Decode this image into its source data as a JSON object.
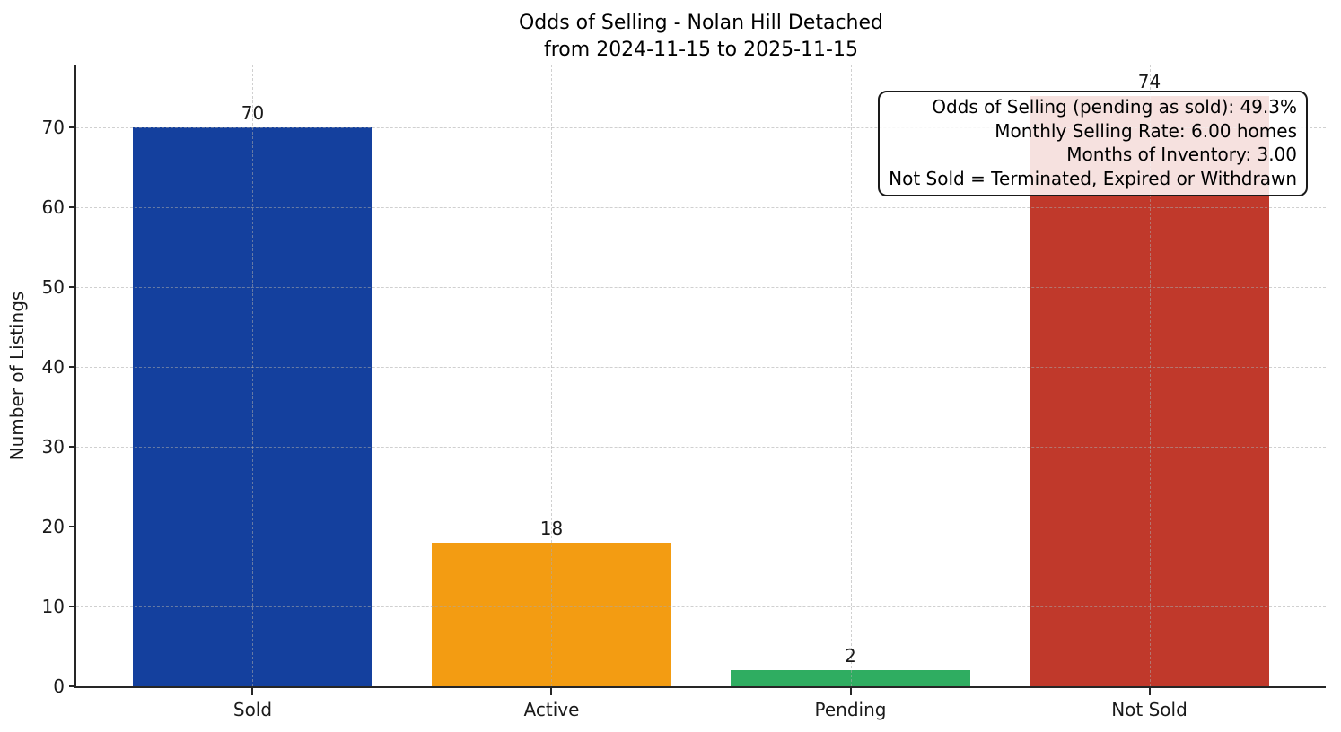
{
  "figure": {
    "title_line1": "Odds of Selling - Nolan Hill Detached",
    "title_line2": "from 2024-11-15 to 2025-11-15",
    "ylabel": "Number of Listings"
  },
  "chart_data": {
    "type": "bar",
    "title": "Odds of Selling - Nolan Hill Detached\nfrom 2024-11-15 to 2025-11-15",
    "xlabel": "",
    "ylabel": "Number of Listings",
    "categories": [
      "Sold",
      "Active",
      "Pending",
      "Not Sold"
    ],
    "values": [
      70,
      18,
      2,
      74
    ],
    "bar_value_labels": [
      "70",
      "18",
      "2",
      "74"
    ],
    "bar_colors": [
      "#14409e",
      "#f39c12",
      "#2fad61",
      "#c0392b"
    ],
    "ylim": [
      0,
      77.9
    ],
    "yticks": [
      0,
      10,
      20,
      30,
      40,
      50,
      60,
      70
    ],
    "grid": true,
    "grid_style": "dashed",
    "legend_position": "none",
    "annotation_box": {
      "lines": [
        "Odds of Selling (pending as sold): 49.3%",
        "Monthly Selling Rate: 6.00 homes",
        "Months of Inventory: 3.00",
        "Not Sold = Terminated, Expired or Withdrawn"
      ]
    },
    "colors": {
      "spine": "#262626",
      "grid": "#aaaaaa",
      "text": "#000000",
      "background": "#ffffff"
    }
  }
}
